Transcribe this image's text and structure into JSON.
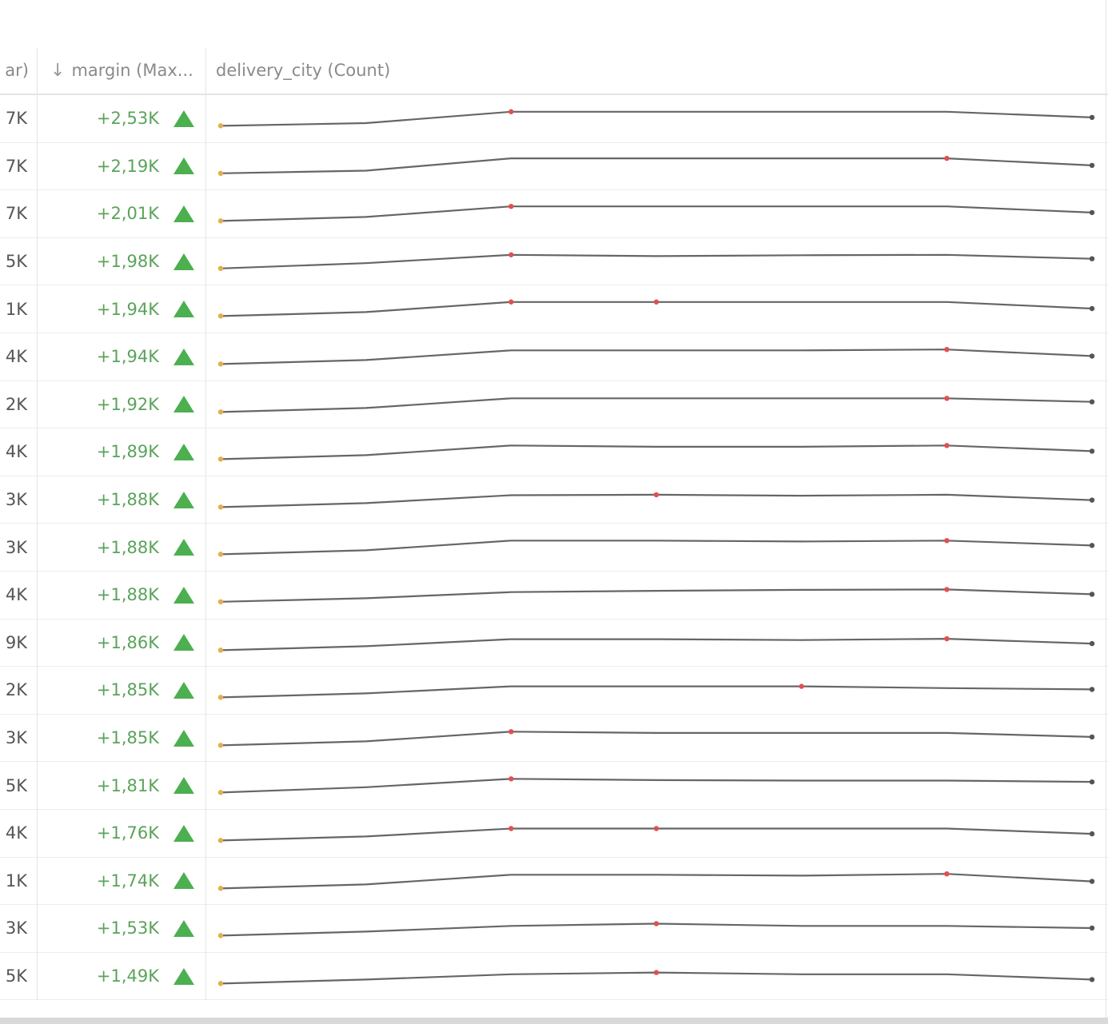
{
  "header": {
    "col1_label": "ar)",
    "col2_label": "margin (Max...",
    "col2_sort_icon": "arrow-down-icon",
    "col3_label": "delivery_city (Count)"
  },
  "colors": {
    "positive_text": "#5aa35a",
    "up_triangle": "#4caf50",
    "sparkline_line": "#666666",
    "sparkline_start_point": "#e0b050",
    "sparkline_max_point": "#e05050",
    "sparkline_end_point": "#555555"
  },
  "rows": [
    {
      "c1": "7K",
      "margin": "+2,53K",
      "trend": "up-triangle-icon",
      "spark": [
        3,
        9,
        35,
        35,
        35,
        35,
        22
      ],
      "max_idx": [
        2
      ]
    },
    {
      "c1": "7K",
      "margin": "+2,19K",
      "trend": "up-triangle-icon",
      "spark": [
        4,
        10,
        38,
        38,
        38,
        38,
        22
      ],
      "max_idx": [
        5
      ]
    },
    {
      "c1": "7K",
      "margin": "+2,01K",
      "trend": "up-triangle-icon",
      "spark": [
        3,
        12,
        36,
        36,
        36,
        36,
        22
      ],
      "max_idx": [
        2
      ]
    },
    {
      "c1": "5K",
      "margin": "+1,98K",
      "trend": "up-triangle-icon",
      "spark": [
        4,
        16,
        35,
        32,
        34,
        35,
        26
      ],
      "max_idx": [
        2
      ]
    },
    {
      "c1": "1K",
      "margin": "+1,94K",
      "trend": "up-triangle-icon",
      "spark": [
        3,
        12,
        35,
        35,
        35,
        35,
        20
      ],
      "max_idx": [
        2,
        3
      ]
    },
    {
      "c1": "4K",
      "margin": "+1,94K",
      "trend": "up-triangle-icon",
      "spark": [
        3,
        12,
        34,
        34,
        34,
        36,
        21
      ],
      "max_idx": [
        5
      ]
    },
    {
      "c1": "2K",
      "margin": "+1,92K",
      "trend": "up-triangle-icon",
      "spark": [
        3,
        12,
        34,
        34,
        34,
        34,
        26
      ],
      "max_idx": [
        5
      ]
    },
    {
      "c1": "4K",
      "margin": "+1,89K",
      "trend": "up-triangle-icon",
      "spark": [
        3,
        12,
        34,
        31,
        31,
        34,
        21
      ],
      "max_idx": [
        5
      ]
    },
    {
      "c1": "3K",
      "margin": "+1,88K",
      "trend": "up-triangle-icon",
      "spark": [
        3,
        12,
        30,
        31,
        29,
        31,
        19
      ],
      "max_idx": [
        3
      ]
    },
    {
      "c1": "3K",
      "margin": "+1,88K",
      "trend": "up-triangle-icon",
      "spark": [
        3,
        12,
        34,
        34,
        32,
        34,
        23
      ],
      "max_idx": [
        5
      ]
    },
    {
      "c1": "4K",
      "margin": "+1,88K",
      "trend": "up-triangle-icon",
      "spark": [
        4,
        12,
        26,
        29,
        31,
        32,
        21
      ],
      "max_idx": [
        5
      ]
    },
    {
      "c1": "9K",
      "margin": "+1,86K",
      "trend": "up-triangle-icon",
      "spark": [
        3,
        12,
        28,
        28,
        26,
        29,
        18
      ],
      "max_idx": [
        5
      ]
    },
    {
      "c1": "2K",
      "margin": "+1,85K",
      "trend": "up-triangle-icon",
      "spark": [
        3,
        12,
        28,
        28,
        28,
        24,
        21
      ],
      "max_idx": [
        4
      ]
    },
    {
      "c1": "3K",
      "margin": "+1,85K",
      "trend": "up-triangle-icon",
      "spark": [
        3,
        12,
        34,
        31,
        31,
        31,
        22
      ],
      "max_idx": [
        2
      ]
    },
    {
      "c1": "5K",
      "margin": "+1,81K",
      "trend": "up-triangle-icon",
      "spark": [
        3,
        15,
        34,
        31,
        30,
        30,
        27
      ],
      "max_idx": [
        2
      ]
    },
    {
      "c1": "4K",
      "margin": "+1,76K",
      "trend": "up-triangle-icon",
      "spark": [
        3,
        12,
        30,
        30,
        30,
        30,
        18
      ],
      "max_idx": [
        2,
        3
      ]
    },
    {
      "c1": "1K",
      "margin": "+1,74K",
      "trend": "up-triangle-icon",
      "spark": [
        3,
        12,
        34,
        34,
        32,
        36,
        19
      ],
      "max_idx": [
        5
      ]
    },
    {
      "c1": "3K",
      "margin": "+1,53K",
      "trend": "up-triangle-icon",
      "spark": [
        3,
        12,
        25,
        30,
        25,
        25,
        20
      ],
      "max_idx": [
        3
      ]
    },
    {
      "c1": "5K",
      "margin": "+1,49K",
      "trend": "up-triangle-icon",
      "spark": [
        3,
        12,
        24,
        28,
        24,
        24,
        12
      ],
      "max_idx": [
        3
      ]
    }
  ],
  "spark_x": [
    0,
    1,
    2,
    3,
    4,
    5,
    6
  ]
}
